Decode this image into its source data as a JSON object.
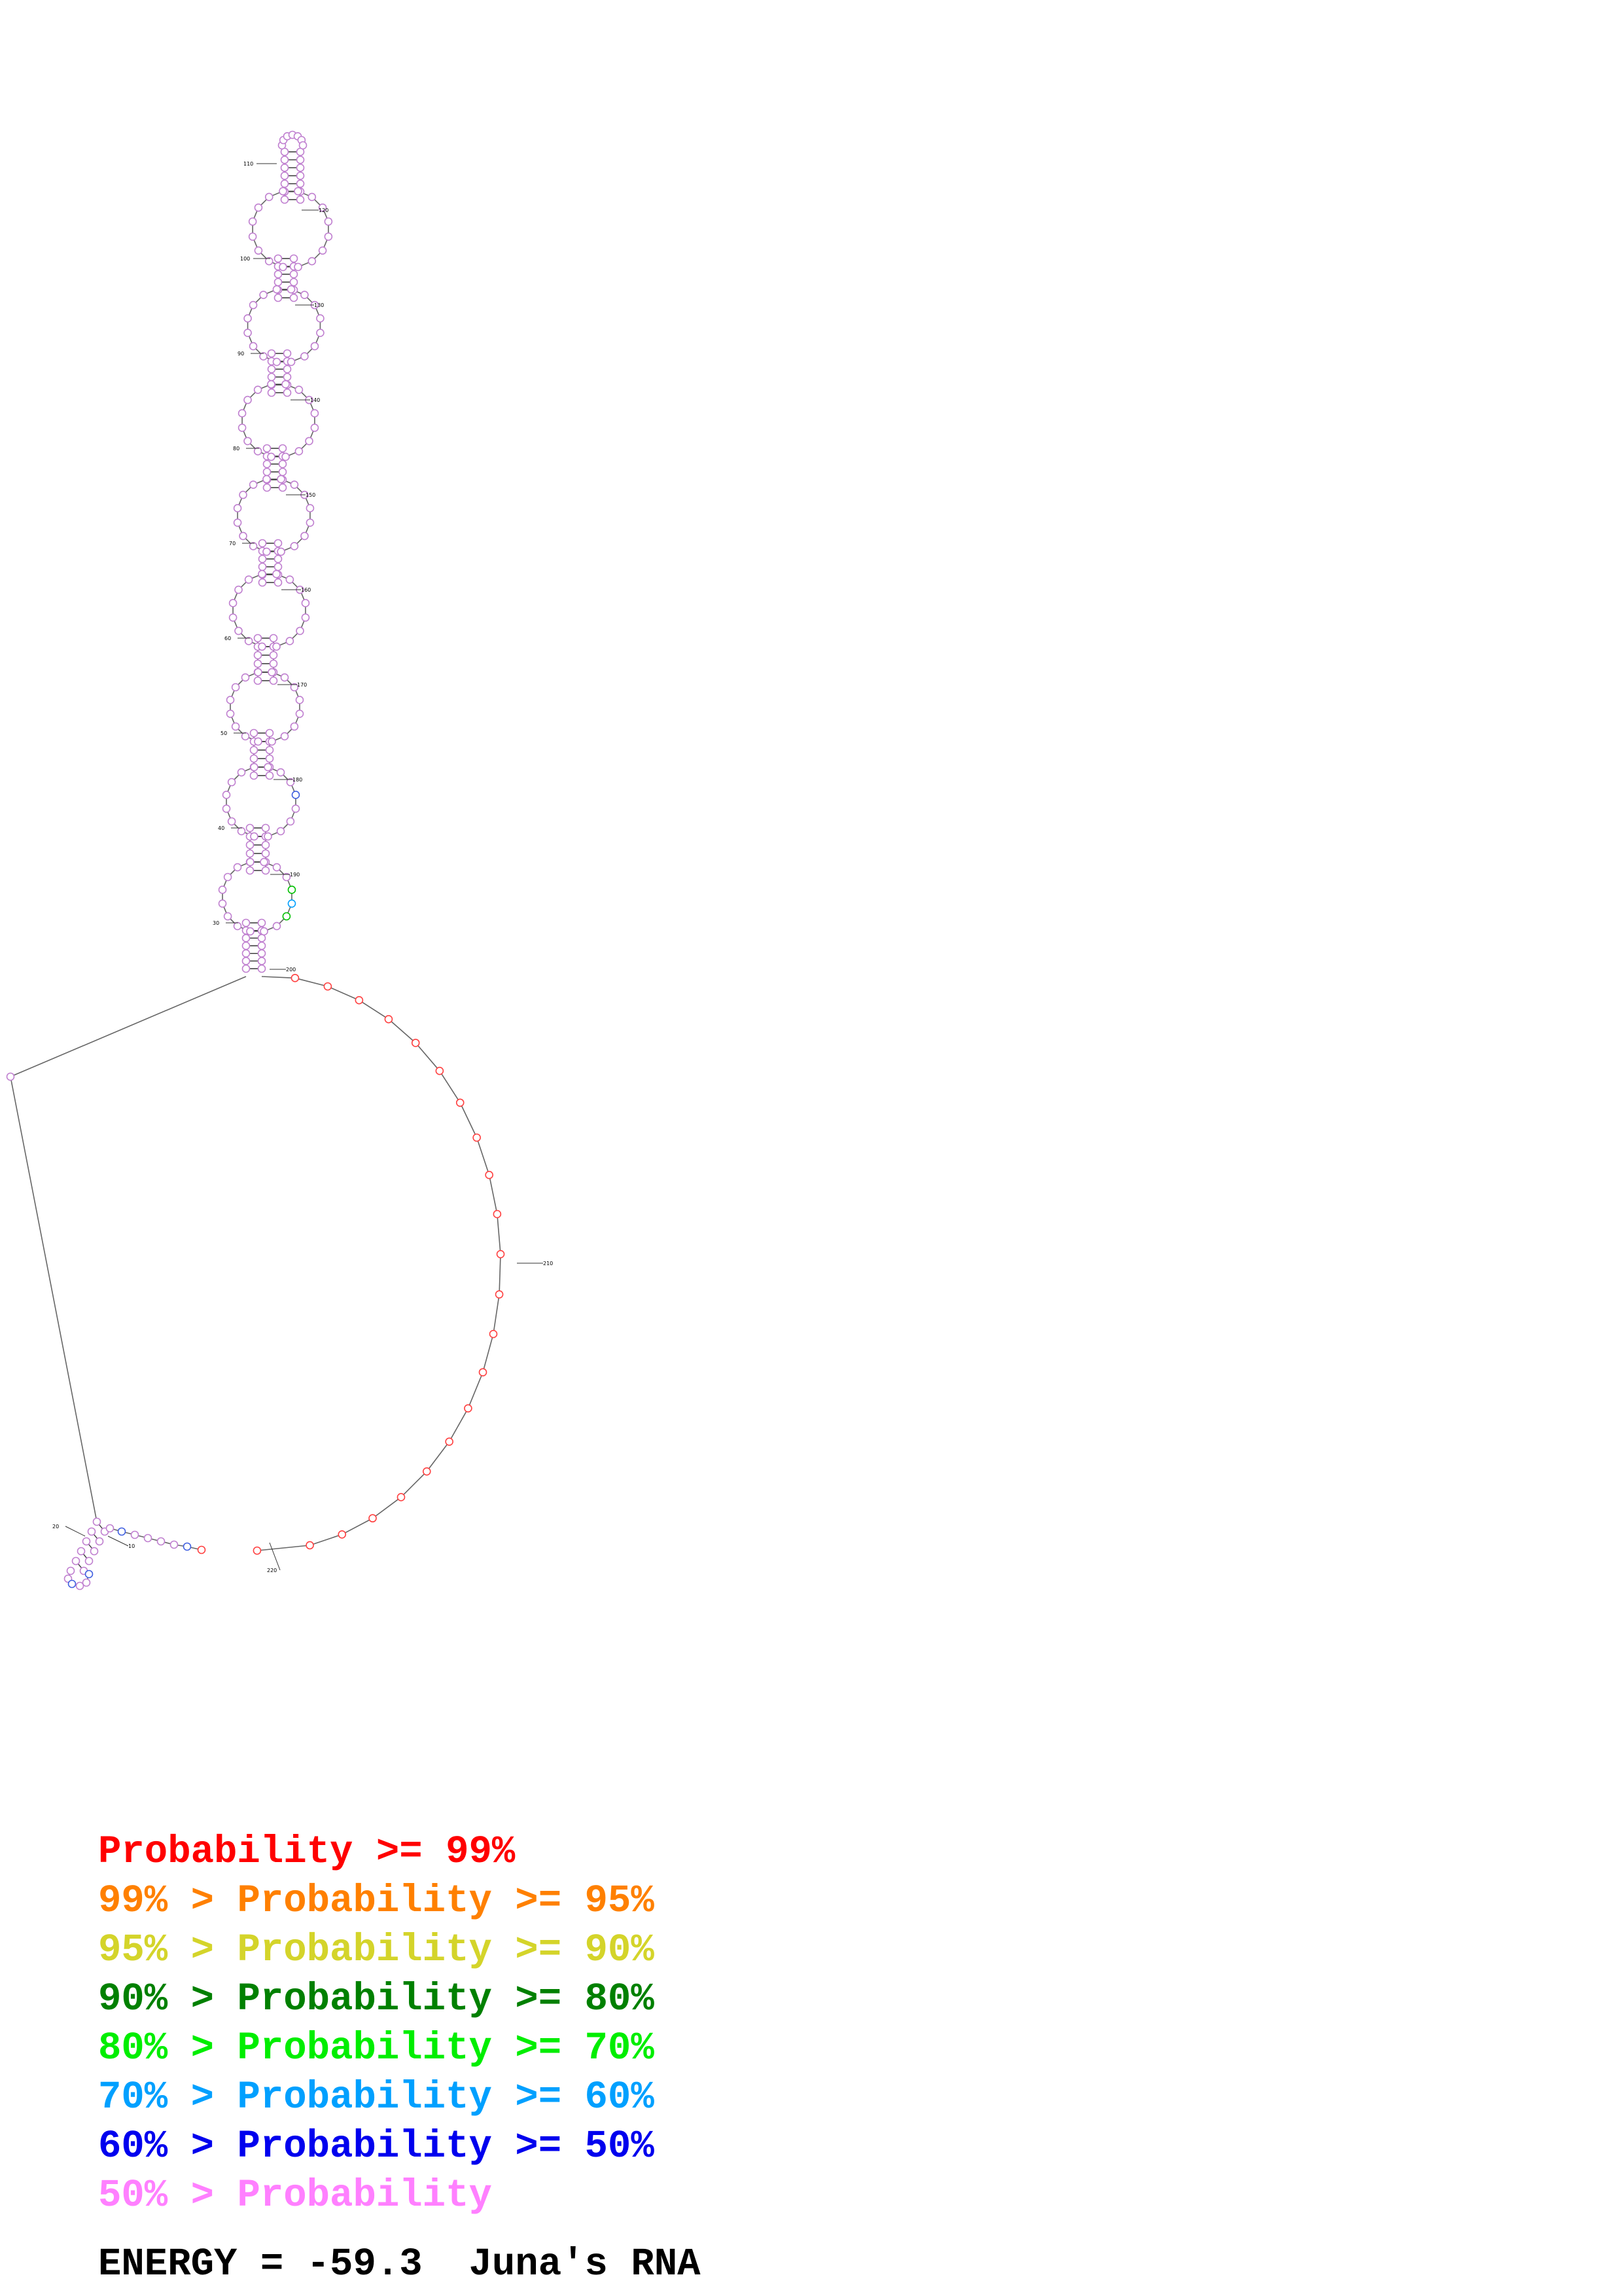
{
  "position_labels": [
    "10",
    "20",
    "30",
    "40",
    "50",
    "60",
    "70",
    "80",
    "90",
    "100",
    "110",
    "120",
    "130",
    "140",
    "150",
    "160",
    "170",
    "180",
    "190",
    "200",
    "210",
    "220"
  ],
  "legend": [
    {
      "prefix": "",
      "label": "Probability >= 99%",
      "color": "#ff0000"
    },
    {
      "prefix": "99% > ",
      "label": "Probability >= 95%",
      "color": "#ff8000"
    },
    {
      "prefix": "95% > ",
      "label": "Probability >= 90%",
      "color": "#d4d42a"
    },
    {
      "prefix": "90% > ",
      "label": "Probability >= 80%",
      "color": "#008000"
    },
    {
      "prefix": "80% > ",
      "label": "Probability >= 70%",
      "color": "#00ee00"
    },
    {
      "prefix": "70% > ",
      "label": "Probability >= 60%",
      "color": "#00a0ff"
    },
    {
      "prefix": "60% > ",
      "label": "Probability >= 50%",
      "color": "#0000ee"
    },
    {
      "prefix": "50% > ",
      "label": "Probability",
      "color": "#ff80ff"
    }
  ],
  "energy_text": "ENERGY = -59.3  Juna's RNA",
  "colors": {
    "base_outline_default": "#c080d0",
    "backbone": "#666666",
    "tail_bases": "#ff4040",
    "hairpin_bases": "#4060e0"
  }
}
